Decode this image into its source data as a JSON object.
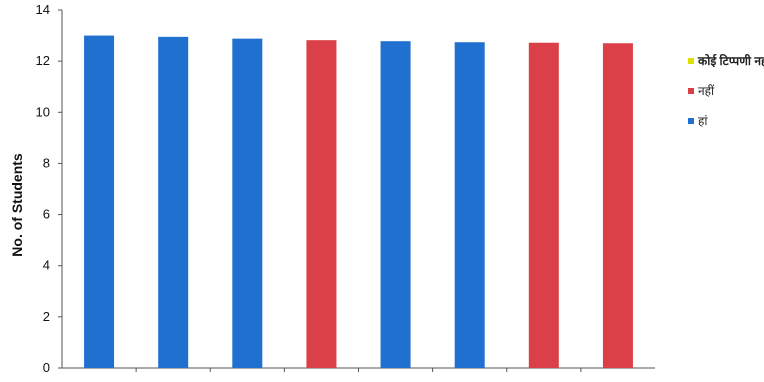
{
  "chart_data": {
    "type": "bar",
    "title": "",
    "xlabel": "",
    "ylabel": "No. of Students",
    "ylim": [
      0,
      14
    ],
    "y_ticks": [
      "0",
      "2",
      "4",
      "6",
      "8",
      "10",
      "12",
      "14"
    ],
    "categories": [
      "",
      "",
      "",
      "",
      "",
      "",
      "",
      ""
    ],
    "values": [
      13.0,
      12.95,
      12.88,
      12.82,
      12.78,
      12.74,
      12.72,
      12.7
    ],
    "bar_series": [
      "हां",
      "हां",
      "हां",
      "नहीं",
      "हां",
      "हां",
      "नहीं",
      "नहीं"
    ],
    "legend": [
      {
        "label": "कोई टिप्पणी नहीं",
        "color": "#e0e000"
      },
      {
        "label": "नहीं",
        "color": "#db4048"
      },
      {
        "label": "हां",
        "color": "#1f70cf"
      }
    ],
    "legend_position": "right",
    "grid": false
  }
}
